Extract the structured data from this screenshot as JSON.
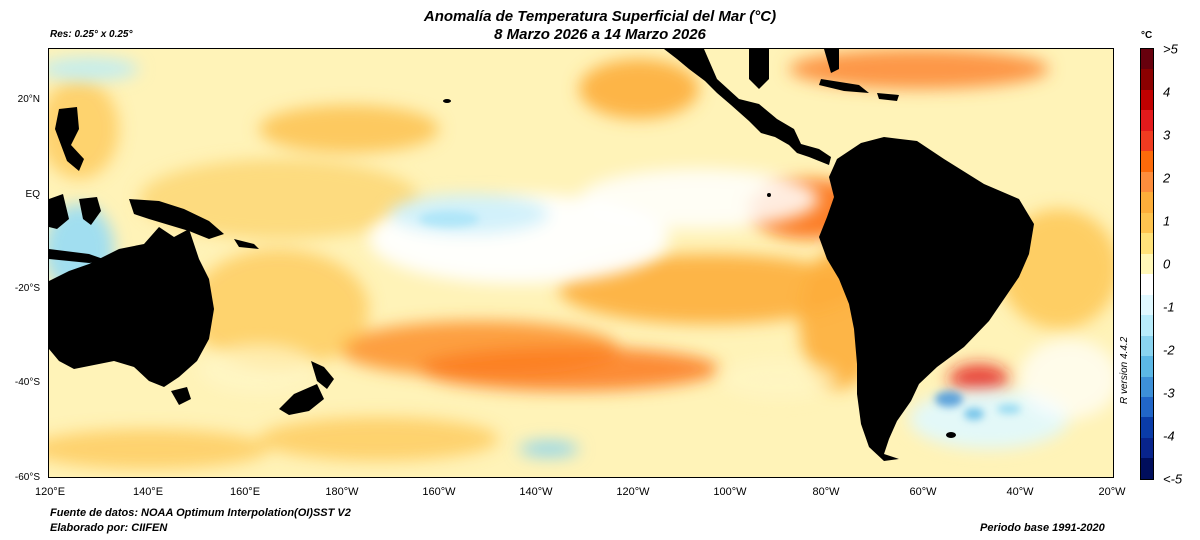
{
  "header": {
    "title_line1": "Anomalía de Temperatura Superficial del Mar (°C)",
    "title_line2": "8 Marzo 2026 a 14 Marzo 2026",
    "resolution": "Res: 0.25° x 0.25°"
  },
  "map": {
    "region": "Pacífico tropical y sur",
    "lat_range": [
      -60,
      30
    ],
    "lon_range_east": [
      120,
      340
    ],
    "lat_labels": [
      "20°N",
      "EQ",
      "-20°S",
      "-40°S",
      "-60°S"
    ],
    "lon_labels": [
      "120°E",
      "140°E",
      "160°E",
      "180°W",
      "160°W",
      "140°W",
      "120°W",
      "100°W",
      "80°W",
      "60°W",
      "40°W",
      "20°W"
    ],
    "land_color": "#000000",
    "ocean_base_color": "#fff6c0"
  },
  "colorbar": {
    "unit": "°C",
    "labels": [
      ">5",
      "4",
      "3",
      "2",
      "1",
      "0",
      "-1",
      "-2",
      "-3",
      "-4",
      "<-5"
    ],
    "colors": [
      "#67000d",
      "#8b0000",
      "#c00000",
      "#e31a1c",
      "#f03b20",
      "#fc6a0a",
      "#fd8d3c",
      "#fdae3a",
      "#fec44f",
      "#ffe27a",
      "#fff7b8",
      "#ffffff",
      "#e0f8ff",
      "#b8ecfb",
      "#8ad4f0",
      "#5cb8e6",
      "#3d90d8",
      "#2166c8",
      "#0a3ca8",
      "#08248c",
      "#000e5c"
    ]
  },
  "footer": {
    "source": "Fuente de datos: NOAA Optimum Interpolation(OI)SST V2",
    "author": "Elaborado por: CIIFEN",
    "base_period": "Periodo base 1991-2020",
    "r_version": "R version 4.4.2"
  }
}
